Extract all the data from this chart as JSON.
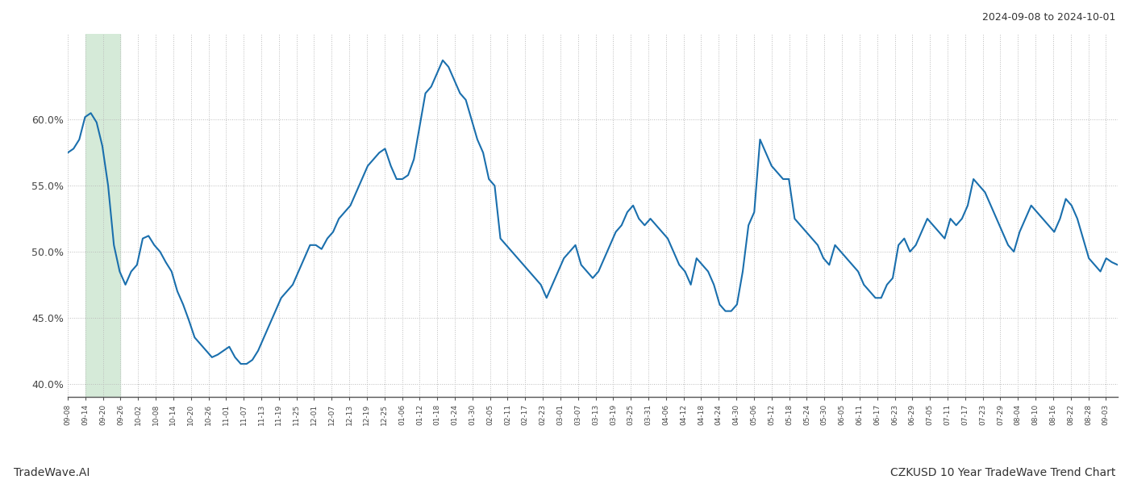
{
  "title_right": "2024-09-08 to 2024-10-01",
  "footer_left": "TradeWave.AI",
  "footer_right": "CZKUSD 10 Year TradeWave Trend Chart",
  "ylim": [
    39.0,
    66.5
  ],
  "yticks": [
    40.0,
    45.0,
    50.0,
    55.0,
    60.0
  ],
  "ytick_labels": [
    "40.0%",
    "45.0%",
    "50.0%",
    "55.0%",
    "60.0%"
  ],
  "line_color": "#1a6fad",
  "line_width": 1.5,
  "bg_color": "#ffffff",
  "grid_color": "#bbbbbb",
  "shade_color": "#d5ead8",
  "shade_alpha": 1.0,
  "x_labels": [
    "09-08",
    "09-14",
    "09-20",
    "09-26",
    "10-02",
    "10-08",
    "10-14",
    "10-20",
    "10-26",
    "11-01",
    "11-07",
    "11-13",
    "11-19",
    "11-25",
    "12-01",
    "12-07",
    "12-13",
    "12-19",
    "12-25",
    "01-06",
    "01-12",
    "01-18",
    "01-24",
    "01-30",
    "02-05",
    "02-11",
    "02-17",
    "02-23",
    "03-01",
    "03-07",
    "03-13",
    "03-19",
    "03-25",
    "03-31",
    "04-06",
    "04-12",
    "04-18",
    "04-24",
    "04-30",
    "05-06",
    "05-12",
    "05-18",
    "05-24",
    "05-30",
    "06-05",
    "06-11",
    "06-17",
    "06-23",
    "06-29",
    "07-05",
    "07-11",
    "07-17",
    "07-23",
    "07-29",
    "08-04",
    "08-10",
    "08-16",
    "08-22",
    "08-28",
    "09-03"
  ],
  "values": [
    57.5,
    57.8,
    58.5,
    60.2,
    60.5,
    59.8,
    58.0,
    55.0,
    50.5,
    48.5,
    47.5,
    48.5,
    49.0,
    51.0,
    51.2,
    50.5,
    50.0,
    49.2,
    48.5,
    47.0,
    46.0,
    44.8,
    43.5,
    43.0,
    42.5,
    42.0,
    42.2,
    42.5,
    42.8,
    42.0,
    41.5,
    41.5,
    41.8,
    42.5,
    43.5,
    44.5,
    45.5,
    46.5,
    47.0,
    47.5,
    48.5,
    49.5,
    50.5,
    50.5,
    50.2,
    51.0,
    51.5,
    52.5,
    53.0,
    53.5,
    54.5,
    55.5,
    56.5,
    57.0,
    57.5,
    57.8,
    56.5,
    55.5,
    55.5,
    55.8,
    57.0,
    59.5,
    62.0,
    62.5,
    63.5,
    64.5,
    64.0,
    63.0,
    62.0,
    61.5,
    60.0,
    58.5,
    57.5,
    55.5,
    55.0,
    51.0,
    50.5,
    50.0,
    49.5,
    49.0,
    48.5,
    48.0,
    47.5,
    46.5,
    47.5,
    48.5,
    49.5,
    50.0,
    50.5,
    49.0,
    48.5,
    48.0,
    48.5,
    49.5,
    50.5,
    51.5,
    52.0,
    53.0,
    53.5,
    52.5,
    52.0,
    52.5,
    52.0,
    51.5,
    51.0,
    50.0,
    49.0,
    48.5,
    47.5,
    49.5,
    49.0,
    48.5,
    47.5,
    46.0,
    45.5,
    45.5,
    46.0,
    48.5,
    52.0,
    53.0,
    58.5,
    57.5,
    56.5,
    56.0,
    55.5,
    55.5,
    52.5,
    52.0,
    51.5,
    51.0,
    50.5,
    49.5,
    49.0,
    50.5,
    50.0,
    49.5,
    49.0,
    48.5,
    47.5,
    47.0,
    46.5,
    46.5,
    47.5,
    48.0,
    50.5,
    51.0,
    50.0,
    50.5,
    51.5,
    52.5,
    52.0,
    51.5,
    51.0,
    52.5,
    52.0,
    52.5,
    53.5,
    55.5,
    55.0,
    54.5,
    53.5,
    52.5,
    51.5,
    50.5,
    50.0,
    51.5,
    52.5,
    53.5,
    53.0,
    52.5,
    52.0,
    51.5,
    52.5,
    54.0,
    53.5,
    52.5,
    51.0,
    49.5,
    49.0,
    48.5,
    49.5,
    49.2,
    49.0
  ],
  "shade_start_label": "09-14",
  "shade_end_label": "09-26"
}
